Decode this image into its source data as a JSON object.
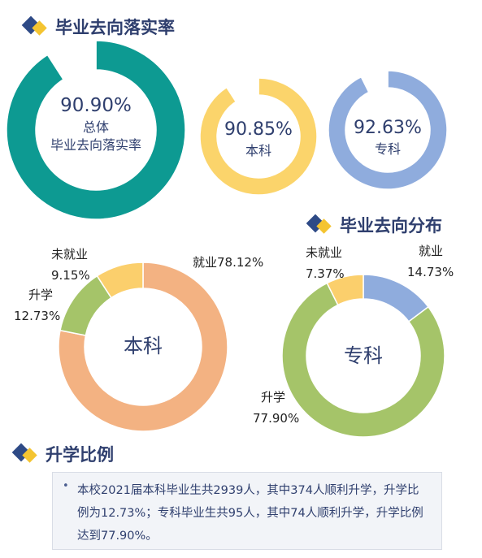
{
  "sections": {
    "rate_title": "毕业去向落实率",
    "dist_title": "毕业去向分布",
    "further_title": "升学比例"
  },
  "chart_data": [
    {
      "type": "pie",
      "donut": true,
      "values": [
        90.9,
        9.1
      ],
      "labels": [
        "总体毕业去向落实率",
        ""
      ],
      "center_value": "90.90%",
      "center_label_1": "总体",
      "center_label_2": "毕业去向落实率",
      "colors": [
        "#0d9a92",
        "#ffffff"
      ]
    },
    {
      "type": "pie",
      "donut": true,
      "values": [
        90.85,
        9.15
      ],
      "center_value": "90.85%",
      "center_label": "本科",
      "colors": [
        "#fbd46b",
        "#ffffff"
      ]
    },
    {
      "type": "pie",
      "donut": true,
      "values": [
        92.63,
        7.37
      ],
      "center_value": "92.63%",
      "center_label": "专科",
      "colors": [
        "#8facdd",
        "#ffffff"
      ]
    },
    {
      "type": "pie",
      "donut": true,
      "center_label": "本科",
      "categories": [
        "就业",
        "升学",
        "未就业"
      ],
      "values": [
        78.12,
        12.73,
        9.15
      ],
      "value_labels": [
        "78.12%",
        "12.73%",
        "9.15%"
      ],
      "colors": [
        "#f3b282",
        "#a5c469",
        "#fbcf6c"
      ]
    },
    {
      "type": "pie",
      "donut": true,
      "center_label": "专科",
      "categories": [
        "就业",
        "升学",
        "未就业"
      ],
      "values": [
        14.73,
        77.9,
        7.37
      ],
      "value_labels": [
        "14.73%",
        "77.90%",
        "7.37%"
      ],
      "colors": [
        "#8facdd",
        "#a5c469",
        "#fbcf6c"
      ]
    }
  ],
  "note": {
    "bullet": "•",
    "text": "本校2021届本科毕业生共2939人，其中374人顺利升学，升学比例为12.73%；专科毕业生共95人，其中74人顺利升学，升学比例达到77.90%。"
  }
}
